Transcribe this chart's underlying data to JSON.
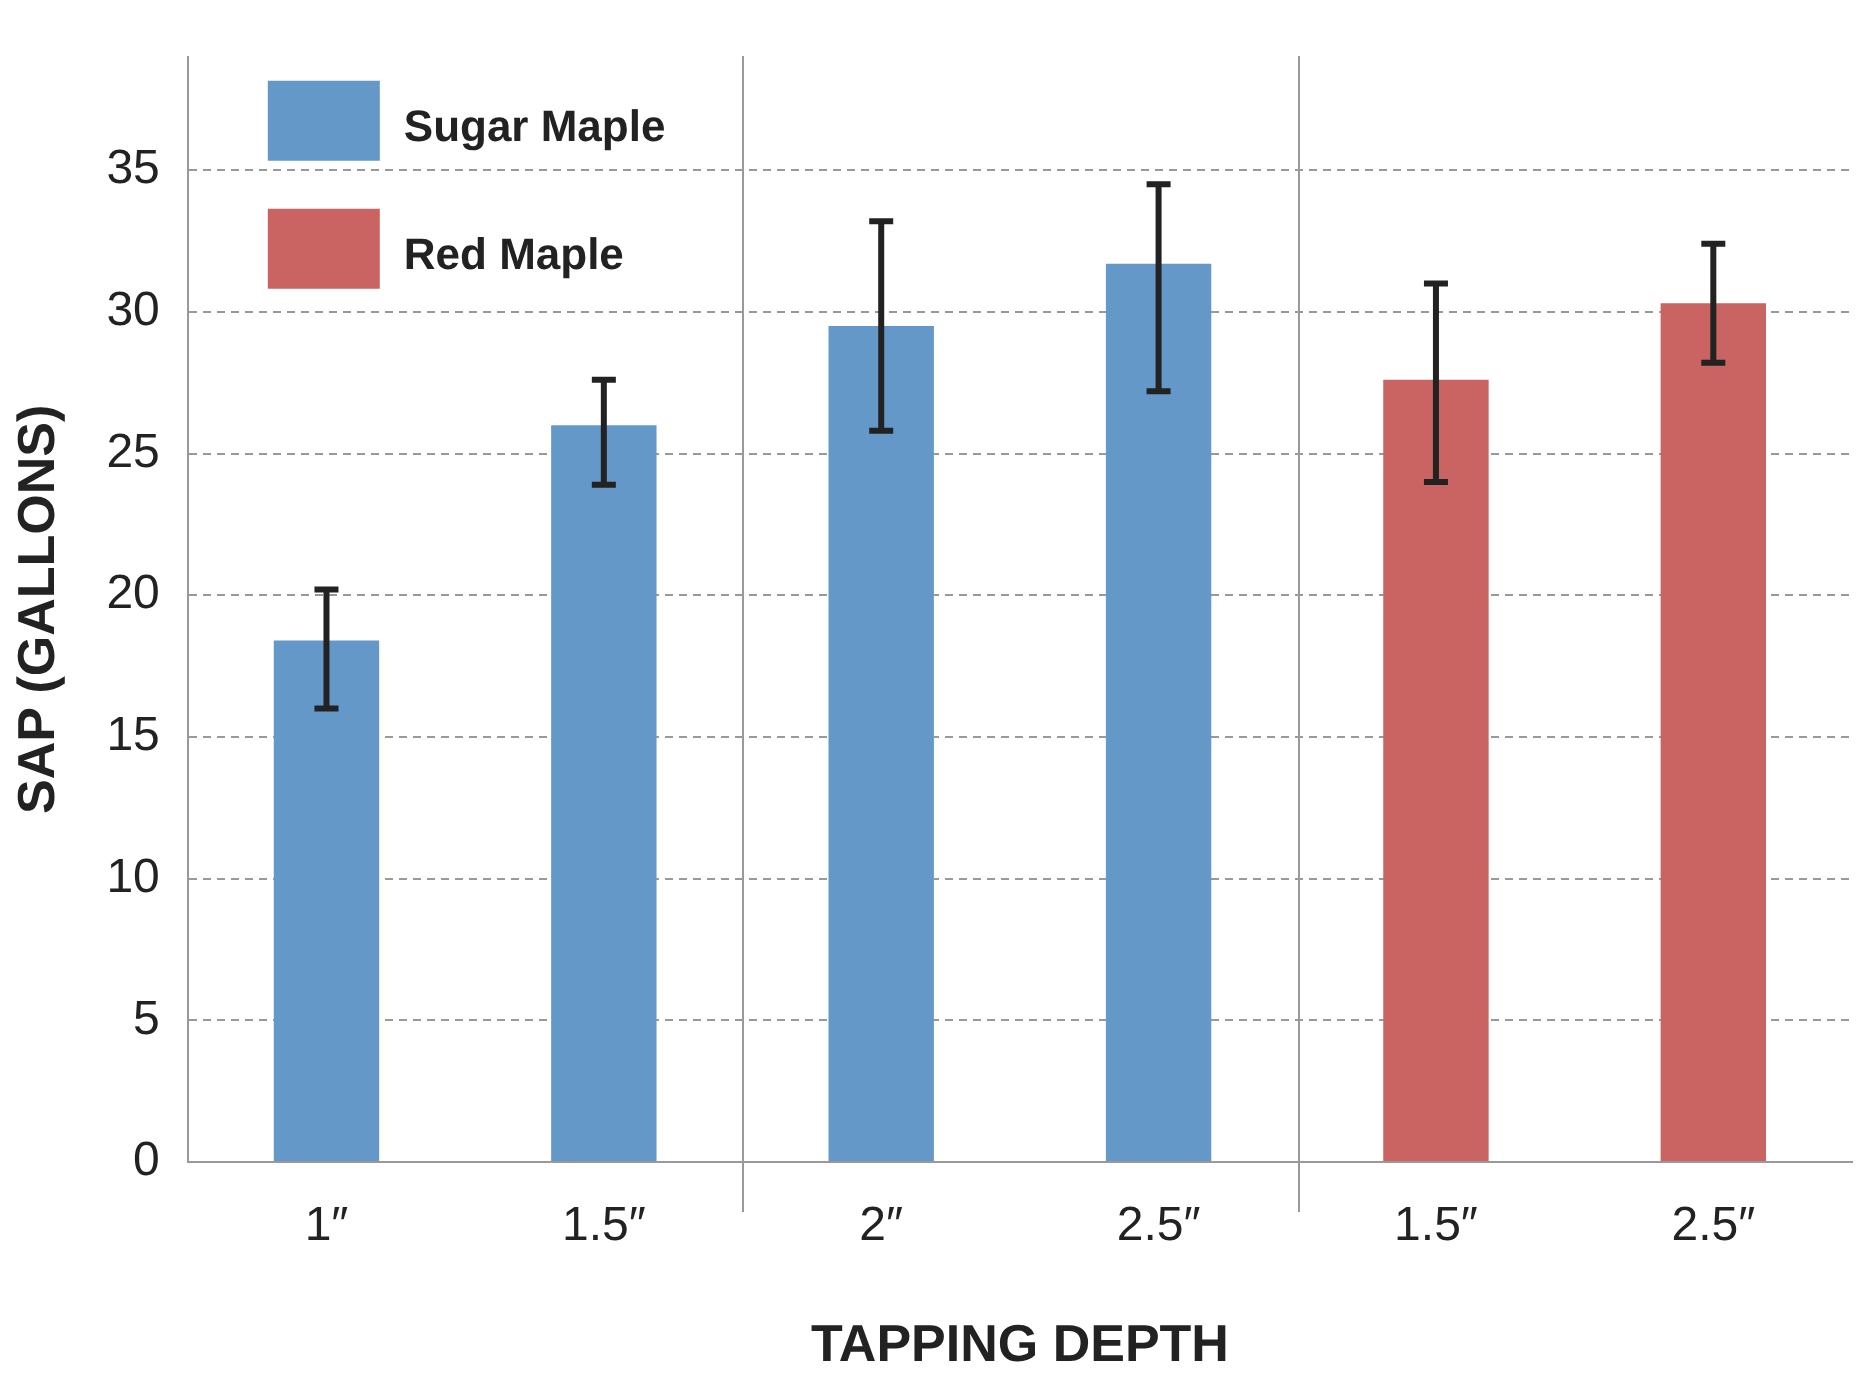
{
  "chart_data": {
    "type": "bar",
    "xlabel": "TAPPING DEPTH",
    "ylabel": "SAP (GALLONS)",
    "categories": [
      "1″",
      "1.5″",
      "2″",
      "2.5″",
      "1.5″",
      "2.5″"
    ],
    "series": [
      {
        "name": "Sugar Maple",
        "color": "#6498c8",
        "values": [
          18.4,
          26.0,
          29.5,
          31.7,
          null,
          null
        ],
        "errors": [
          [
            16.0,
            20.2
          ],
          [
            23.9,
            27.6
          ],
          [
            25.8,
            33.2
          ],
          [
            27.2,
            34.5
          ],
          null,
          null
        ]
      },
      {
        "name": "Red Maple",
        "color": "#c96462",
        "values": [
          null,
          null,
          null,
          null,
          27.6,
          30.3
        ],
        "errors": [
          null,
          null,
          null,
          null,
          [
            24.0,
            31.0
          ],
          [
            28.2,
            32.4
          ]
        ]
      }
    ],
    "ylim": [
      0,
      39
    ],
    "yticks": [
      0,
      5,
      10,
      15,
      20,
      25,
      30,
      35
    ],
    "grid": "y",
    "legend": "top left"
  }
}
